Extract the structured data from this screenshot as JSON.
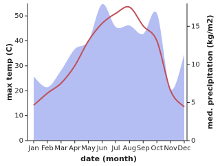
{
  "chart_data": {
    "type": "line",
    "x_label": "date (month)",
    "y_label": "max temp (C)",
    "y2_label": "med. precipitation (kg/m2)",
    "categories": [
      "Jan",
      "Feb",
      "Mar",
      "Apr",
      "May",
      "Jun",
      "Jul",
      "Aug",
      "Sep",
      "Oct",
      "Nov",
      "Dec"
    ],
    "ylim": [
      0,
      55
    ],
    "yticks": [
      0,
      10,
      20,
      30,
      40,
      50
    ],
    "y2lim": [
      0,
      18
    ],
    "y2ticks": [
      0,
      5,
      10,
      15
    ],
    "series": [
      {
        "name": "med. precipitation",
        "type": "area",
        "axis": "y2",
        "color": "#b4bef2",
        "values": [
          8.4,
          7.0,
          9.2,
          12.0,
          13.1,
          17.9,
          14.9,
          15.1,
          14.0,
          16.7,
          6.8,
          11.3
        ]
      },
      {
        "name": "max temp",
        "type": "line",
        "color": "#c0505a",
        "values": [
          14.2,
          19,
          23,
          30,
          40,
          47,
          51,
          53.5,
          46,
          40,
          20,
          13.5
        ]
      }
    ]
  }
}
